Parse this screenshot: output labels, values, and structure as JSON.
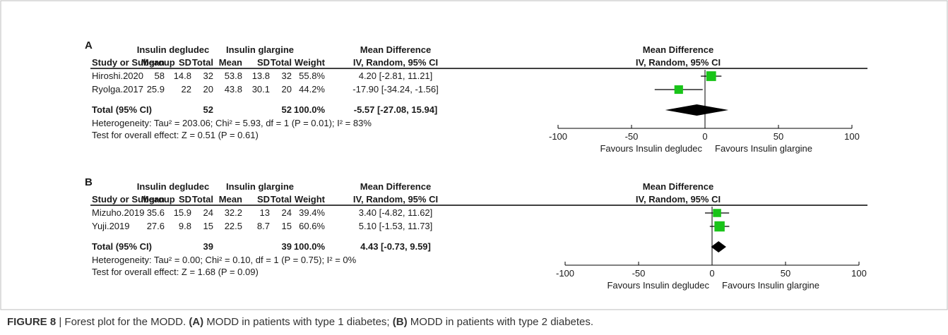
{
  "figure": {
    "caption_label": "FIGURE 8",
    "caption_sep": " | ",
    "caption_text": "Forest plot for the MODD. ",
    "caption_a_label": "(A)",
    "caption_a_text": " MODD in patients with type 1 diabetes; ",
    "caption_b_label": "(B)",
    "caption_b_text": " MODD in patients with type 2 diabetes."
  },
  "colors": {
    "square": "#19c419",
    "diamond": "#000000",
    "line": "#000000",
    "border": "#bdbdbd"
  },
  "headers": {
    "group1": "Insulin degludec",
    "group2": "Insulin glargine",
    "md": "Mean Difference",
    "study": "Study or Subgroup",
    "mean": "Mean",
    "sd": "SD",
    "total": "Total",
    "weight": "Weight",
    "ci": "IV, Random, 95% CI",
    "plot_title": "Mean Difference",
    "plot_sub": "IV, Random, 95% CI"
  },
  "chart_data": [
    {
      "type": "forest",
      "panel": "A",
      "xlim": [
        -100,
        100
      ],
      "ticks": [
        "-100",
        "-50",
        "0",
        "50",
        "100"
      ],
      "tick_values": [
        -100,
        -50,
        0,
        50,
        100
      ],
      "favours_left": "Favours Insulin degludec",
      "favours_right": "Favours Insulin glargine",
      "studies": [
        {
          "name": "Hiroshi.2020",
          "m1": "58",
          "sd1": "14.8",
          "n1": "32",
          "m2": "53.8",
          "sd2": "13.8",
          "n2": "32",
          "weight": "55.8%",
          "ci_text": "4.20 [-2.81, 11.21]",
          "md": 4.2,
          "lo": -2.81,
          "hi": 11.21,
          "w": 55.8
        },
        {
          "name": "Ryolga.2017",
          "m1": "25.9",
          "sd1": "22",
          "n1": "20",
          "m2": "43.8",
          "sd2": "30.1",
          "n2": "20",
          "weight": "44.2%",
          "ci_text": "-17.90 [-34.24, -1.56]",
          "md": -17.9,
          "lo": -34.24,
          "hi": -1.56,
          "w": 44.2
        }
      ],
      "total": {
        "label": "Total (95% CI)",
        "n1": "52",
        "n2": "52",
        "weight": "100.0%",
        "ci_text": "-5.57 [-27.08, 15.94]",
        "md": -5.57,
        "lo": -27.08,
        "hi": 15.94
      },
      "heterogeneity": "Heterogeneity: Tau² = 203.06; Chi² = 5.93, df = 1 (P = 0.01); I² = 83%",
      "overall": "Test for overall effect: Z = 0.51 (P = 0.61)"
    },
    {
      "type": "forest",
      "panel": "B",
      "xlim": [
        -100,
        100
      ],
      "ticks": [
        "-100",
        "-50",
        "0",
        "50",
        "100"
      ],
      "tick_values": [
        -100,
        -50,
        0,
        50,
        100
      ],
      "favours_left": "Favours Insulin degludec",
      "favours_right": "Favours Insulin glargine",
      "studies": [
        {
          "name": "Mizuho.2019",
          "m1": "35.6",
          "sd1": "15.9",
          "n1": "24",
          "m2": "32.2",
          "sd2": "13",
          "n2": "24",
          "weight": "39.4%",
          "ci_text": "3.40 [-4.82, 11.62]",
          "md": 3.4,
          "lo": -4.82,
          "hi": 11.62,
          "w": 39.4
        },
        {
          "name": "Yuji.2019",
          "m1": "27.6",
          "sd1": "9.8",
          "n1": "15",
          "m2": "22.5",
          "sd2": "8.7",
          "n2": "15",
          "weight": "60.6%",
          "ci_text": "5.10 [-1.53, 11.73]",
          "md": 5.1,
          "lo": -1.53,
          "hi": 11.73,
          "w": 60.6
        }
      ],
      "total": {
        "label": "Total (95% CI)",
        "n1": "39",
        "n2": "39",
        "weight": "100.0%",
        "ci_text": "4.43 [-0.73, 9.59]",
        "md": 4.43,
        "lo": -0.73,
        "hi": 9.59
      },
      "heterogeneity": "Heterogeneity: Tau² = 0.00; Chi² = 0.10, df = 1 (P = 0.75); I² = 0%",
      "overall": "Test for overall effect: Z = 1.68 (P = 0.09)"
    }
  ]
}
